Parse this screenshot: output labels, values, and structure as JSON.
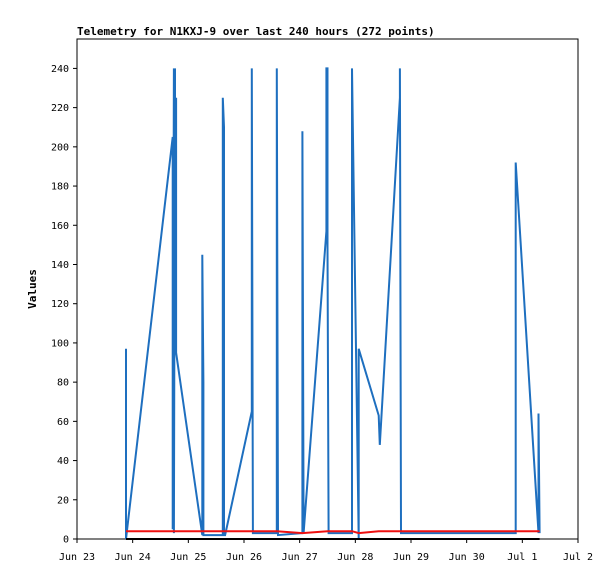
{
  "chart_data": {
    "type": "line",
    "title": "Telemetry for N1KXJ-9 over last 240 hours (272 points)",
    "xlabel": "",
    "ylabel": "Values",
    "x_tick_labels": [
      "Jun 23",
      "Jun 24",
      "Jun 25",
      "Jun 26",
      "Jun 27",
      "Jun 28",
      "Jun 29",
      "Jun 30",
      "Jul 1",
      "Jul 2"
    ],
    "y_tick_labels": [
      "0",
      "20",
      "40",
      "60",
      "80",
      "100",
      "120",
      "140",
      "160",
      "180",
      "200",
      "220",
      "240"
    ],
    "xlim_days": [
      0,
      9
    ],
    "ylim": [
      0,
      255
    ],
    "grid": false,
    "colors": {
      "series1": "#1e6fbf",
      "series2": "#ee1111",
      "series3": "#000000",
      "axis": "#000000"
    },
    "series": [
      {
        "color": "#1e6fbf",
        "x_days": [
          0.88,
          0.88,
          0.88,
          1.72,
          1.72,
          1.74,
          1.74,
          1.76,
          1.76,
          1.78,
          1.78,
          2.25,
          2.25,
          2.27,
          2.27,
          2.62,
          2.62,
          2.64,
          2.64,
          2.66,
          2.66,
          3.14,
          3.14,
          3.16,
          3.16,
          3.59,
          3.59,
          3.61,
          3.61,
          4.05,
          4.05,
          4.07,
          4.07,
          4.48,
          4.48,
          4.5,
          4.5,
          4.52,
          4.52,
          4.94,
          4.94,
          5.06,
          5.06,
          5.42,
          5.42,
          5.44,
          5.44,
          5.8,
          5.8,
          5.82,
          5.82,
          5.84,
          5.84,
          7.88,
          7.88,
          8.29,
          8.29,
          8.31
        ],
        "values": [
          0,
          97,
          0,
          205,
          5,
          240,
          3,
          240,
          95,
          225,
          95,
          2,
          145,
          80,
          2,
          2,
          225,
          210,
          2,
          2,
          2,
          65,
          240,
          3,
          3,
          3,
          240,
          2,
          2,
          3,
          208,
          3,
          3,
          157,
          240,
          240,
          150,
          3,
          3,
          3,
          240,
          0,
          97,
          63,
          63,
          48,
          48,
          225,
          240,
          3,
          3,
          3,
          3,
          3,
          192,
          3,
          64,
          3
        ]
      },
      {
        "color": "#ee1111",
        "x_days": [
          0.88,
          1.72,
          2.25,
          2.62,
          3.14,
          3.59,
          4.05,
          4.5,
          4.94,
          5.06,
          5.42,
          5.84,
          7.88,
          8.31
        ],
        "values": [
          4,
          4,
          4,
          4,
          4,
          4,
          3,
          4,
          4,
          3,
          4,
          4,
          4,
          4
        ]
      },
      {
        "color": "#000000",
        "x_days": [
          0.88,
          8.31
        ],
        "values": [
          0,
          0
        ]
      }
    ]
  }
}
